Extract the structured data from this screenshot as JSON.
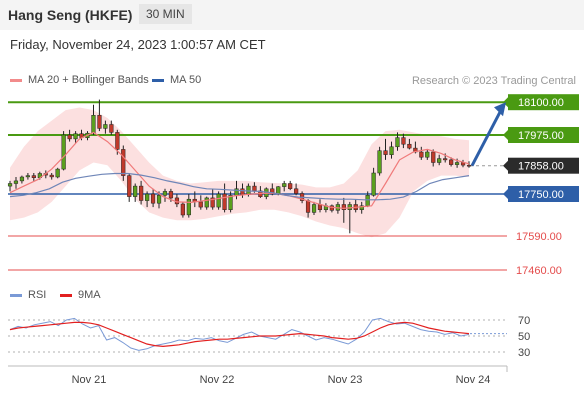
{
  "header": {
    "title": "Hang Seng (HKFE)",
    "timeframe": "30 MIN"
  },
  "subtitle": "Friday, November 24, 2023 1:00:57 AM CET",
  "copyright": "Research © 2023 Trading Central",
  "chart_data": [
    {
      "type": "candlestick",
      "legend": [
        {
          "name": "MA 20 + Bollinger Bands",
          "color": "#f28b8b"
        },
        {
          "name": "MA 50",
          "color": "#2e5fa8"
        }
      ],
      "x_ticks": [
        "Nov 21",
        "Nov 22",
        "Nov 23",
        "Nov 24"
      ],
      "levels": [
        {
          "label": "18100.00",
          "value": 18100,
          "kind": "resistance",
          "color": "#4a9a12"
        },
        {
          "label": "17975.00",
          "value": 17975,
          "kind": "resistance",
          "color": "#4a9a12"
        },
        {
          "label": "17858.00",
          "value": 17858,
          "kind": "last",
          "color": "#333333"
        },
        {
          "label": "17750.00",
          "value": 17750,
          "kind": "pivot",
          "color": "#2e5fa8"
        },
        {
          "label": "17590.00",
          "value": 17590,
          "kind": "support",
          "color": "#e44c4c"
        },
        {
          "label": "17460.00",
          "value": 17460,
          "kind": "support",
          "color": "#e44c4c"
        }
      ],
      "candles": [
        [
          17780,
          17800,
          17760,
          17790
        ],
        [
          17790,
          17815,
          17770,
          17800
        ],
        [
          17800,
          17820,
          17790,
          17815
        ],
        [
          17815,
          17830,
          17805,
          17820
        ],
        [
          17820,
          17830,
          17800,
          17812
        ],
        [
          17812,
          17835,
          17805,
          17828
        ],
        [
          17828,
          17840,
          17810,
          17822
        ],
        [
          17822,
          17830,
          17805,
          17815
        ],
        [
          17815,
          17850,
          17810,
          17845
        ],
        [
          17845,
          17990,
          17840,
          17975
        ],
        [
          17975,
          17995,
          17950,
          17960
        ],
        [
          17960,
          17990,
          17945,
          17980
        ],
        [
          17980,
          17995,
          17955,
          17965
        ],
        [
          17965,
          17990,
          17955,
          17982
        ],
        [
          17982,
          18090,
          17975,
          18050
        ],
        [
          18050,
          18110,
          17990,
          18000
        ],
        [
          18000,
          18030,
          17980,
          18015
        ],
        [
          18015,
          18030,
          17975,
          17985
        ],
        [
          17985,
          17995,
          17900,
          17920
        ],
        [
          17920,
          17935,
          17800,
          17820
        ],
        [
          17820,
          17830,
          17720,
          17740
        ],
        [
          17740,
          17790,
          17720,
          17780
        ],
        [
          17780,
          17800,
          17710,
          17725
        ],
        [
          17725,
          17760,
          17700,
          17750
        ],
        [
          17750,
          17770,
          17700,
          17715
        ],
        [
          17715,
          17760,
          17695,
          17745
        ],
        [
          17745,
          17770,
          17720,
          17760
        ],
        [
          17760,
          17770,
          17720,
          17735
        ],
        [
          17735,
          17750,
          17700,
          17712
        ],
        [
          17712,
          17720,
          17660,
          17670
        ],
        [
          17670,
          17750,
          17660,
          17730
        ],
        [
          17730,
          17760,
          17700,
          17720
        ],
        [
          17720,
          17745,
          17690,
          17700
        ],
        [
          17700,
          17740,
          17690,
          17735
        ],
        [
          17735,
          17770,
          17690,
          17700
        ],
        [
          17700,
          17760,
          17690,
          17750
        ],
        [
          17750,
          17790,
          17680,
          17690
        ],
        [
          17690,
          17760,
          17680,
          17745
        ],
        [
          17745,
          17800,
          17730,
          17770
        ],
        [
          17770,
          17790,
          17735,
          17748
        ],
        [
          17748,
          17790,
          17740,
          17780
        ],
        [
          17780,
          17795,
          17755,
          17762
        ],
        [
          17762,
          17780,
          17735,
          17740
        ],
        [
          17740,
          17775,
          17730,
          17770
        ],
        [
          17770,
          17790,
          17745,
          17750
        ],
        [
          17750,
          17780,
          17745,
          17778
        ],
        [
          17778,
          17800,
          17760,
          17790
        ],
        [
          17790,
          17800,
          17765,
          17770
        ],
        [
          17770,
          17790,
          17745,
          17752
        ],
        [
          17752,
          17760,
          17715,
          17725
        ],
        [
          17725,
          17730,
          17660,
          17680
        ],
        [
          17680,
          17720,
          17670,
          17710
        ],
        [
          17710,
          17730,
          17680,
          17690
        ],
        [
          17690,
          17715,
          17680,
          17705
        ],
        [
          17705,
          17710,
          17680,
          17688
        ],
        [
          17688,
          17720,
          17675,
          17710
        ],
        [
          17710,
          17735,
          17640,
          17690
        ],
        [
          17690,
          17720,
          17600,
          17710
        ],
        [
          17710,
          17730,
          17680,
          17690
        ],
        [
          17690,
          17720,
          17675,
          17705
        ],
        [
          17705,
          17760,
          17700,
          17745
        ],
        [
          17745,
          17850,
          17740,
          17830
        ],
        [
          17830,
          17930,
          17820,
          17915
        ],
        [
          17915,
          17960,
          17880,
          17900
        ],
        [
          17900,
          17950,
          17885,
          17930
        ],
        [
          17930,
          17985,
          17915,
          17965
        ],
        [
          17965,
          17980,
          17925,
          17940
        ],
        [
          17940,
          17960,
          17920,
          17925
        ],
        [
          17925,
          17950,
          17905,
          17910
        ],
        [
          17910,
          17930,
          17880,
          17890
        ],
        [
          17890,
          17920,
          17880,
          17910
        ],
        [
          17910,
          17920,
          17855,
          17870
        ],
        [
          17870,
          17900,
          17860,
          17885
        ],
        [
          17885,
          17905,
          17870,
          17880
        ],
        [
          17880,
          17890,
          17855,
          17862
        ],
        [
          17862,
          17885,
          17850,
          17870
        ],
        [
          17870,
          17880,
          17852,
          17860
        ],
        [
          17860,
          17875,
          17850,
          17858
        ]
      ],
      "ma50": [
        17740,
        17745,
        17755,
        17770,
        17795,
        17810,
        17818,
        17825,
        17828,
        17828,
        17822,
        17812,
        17800,
        17790,
        17778,
        17770,
        17768,
        17765,
        17762,
        17760,
        17755,
        17745,
        17738,
        17735,
        17732,
        17730,
        17730,
        17728,
        17728,
        17730,
        17738,
        17760,
        17790,
        17805,
        17812,
        17820
      ],
      "ma20": [
        17755,
        17780,
        17805,
        17845,
        17900,
        17960,
        17985,
        17950,
        17900,
        17840,
        17780,
        17740,
        17720,
        17718,
        17725,
        17733,
        17742,
        17748,
        17752,
        17753,
        17744,
        17730,
        17715,
        17700,
        17695,
        17700,
        17705,
        17790,
        17880,
        17910,
        17920,
        17905,
        17880,
        17865
      ],
      "bb_upper": [
        17850,
        17930,
        17990,
        18030,
        18070,
        18080,
        18070,
        18040,
        17990,
        17930,
        17870,
        17820,
        17800,
        17790,
        17795,
        17800,
        17800,
        17800,
        17795,
        17792,
        17790,
        17786,
        17775,
        17775,
        17790,
        17840,
        17940,
        17990,
        17995,
        17985,
        17975,
        17970,
        17960,
        17955
      ],
      "bb_lower": [
        17650,
        17660,
        17680,
        17720,
        17780,
        17840,
        17870,
        17860,
        17800,
        17730,
        17680,
        17660,
        17650,
        17650,
        17655,
        17665,
        17675,
        17680,
        17690,
        17690,
        17680,
        17665,
        17645,
        17630,
        17620,
        17600,
        17585,
        17600,
        17660,
        17760,
        17800,
        17820,
        17820,
        17815
      ]
    },
    {
      "type": "line",
      "legend": [
        {
          "name": "RSI",
          "color": "#7a9ad6"
        },
        {
          "name": "9MA",
          "color": "#e22020"
        }
      ],
      "y_ticks": [
        70,
        50,
        30
      ],
      "ylim": [
        20,
        80
      ],
      "rsi": [
        58,
        62,
        60,
        64,
        66,
        68,
        63,
        70,
        72,
        65,
        60,
        63,
        45,
        48,
        42,
        35,
        32,
        34,
        38,
        40,
        42,
        45,
        44,
        47,
        46,
        48,
        44,
        42,
        47,
        52,
        55,
        50,
        48,
        46,
        52,
        58,
        55,
        50,
        45,
        48,
        46,
        43,
        40,
        46,
        55,
        70,
        72,
        68,
        65,
        66,
        62,
        58,
        56,
        55,
        52,
        54,
        50,
        52
      ],
      "rsi_ma": [
        58,
        60,
        61,
        62,
        63,
        64,
        65,
        66,
        67,
        67,
        66,
        64,
        60,
        56,
        52,
        48,
        44,
        40,
        38,
        37,
        38,
        39,
        41,
        43,
        44,
        45,
        46,
        46,
        47,
        48,
        49,
        50,
        50,
        50,
        51,
        52,
        53,
        52,
        51,
        50,
        48,
        47,
        46,
        47,
        50,
        55,
        60,
        64,
        66,
        67,
        66,
        63,
        60,
        58,
        56,
        55,
        54,
        53
      ]
    }
  ]
}
